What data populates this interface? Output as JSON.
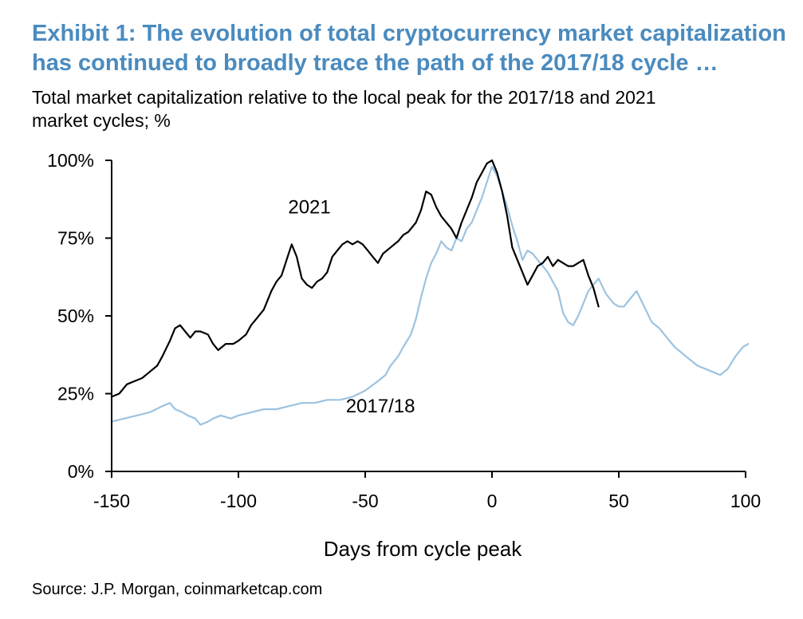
{
  "title_lines": [
    "Exhibit 1: The evolution of total cryptocurrency market capitalization",
    "has continued to broadly trace the path of the 2017/18 cycle …"
  ],
  "subtitle_lines": [
    "Total market capitalization relative to the local peak for the 2017/18 and 2021",
    "market cycles; %"
  ],
  "source": "Source: J.P.  Morgan, coinmarketcap.com",
  "colors": {
    "title": "#4a8bbf",
    "series_2021": "#000000",
    "series_2017": "#9dc3e0"
  },
  "chart_data": {
    "type": "line",
    "title": "",
    "xlabel": "Days from cycle peak",
    "ylabel": "",
    "xlim": [
      -150,
      100
    ],
    "ylim": [
      0,
      100
    ],
    "x_ticks": [
      "-150",
      "-100",
      "-50",
      "0",
      "50",
      "100"
    ],
    "y_ticks": [
      "0%",
      "25%",
      "50%",
      "75%",
      "100%"
    ],
    "grid": false,
    "series": [
      {
        "name": "2021",
        "color": "#000000",
        "points": [
          [
            -150,
            24
          ],
          [
            -147,
            25
          ],
          [
            -144,
            28
          ],
          [
            -141,
            29
          ],
          [
            -138,
            30
          ],
          [
            -135,
            32
          ],
          [
            -132,
            34
          ],
          [
            -130,
            37
          ],
          [
            -127,
            42
          ],
          [
            -125,
            46
          ],
          [
            -123,
            47
          ],
          [
            -121,
            45
          ],
          [
            -119,
            43
          ],
          [
            -117,
            45
          ],
          [
            -115,
            45
          ],
          [
            -112,
            44
          ],
          [
            -110,
            41
          ],
          [
            -108,
            39
          ],
          [
            -105,
            41
          ],
          [
            -102,
            41
          ],
          [
            -100,
            42
          ],
          [
            -97,
            44
          ],
          [
            -95,
            47
          ],
          [
            -93,
            49
          ],
          [
            -90,
            52
          ],
          [
            -87,
            58
          ],
          [
            -85,
            61
          ],
          [
            -83,
            63
          ],
          [
            -81,
            68
          ],
          [
            -79,
            73
          ],
          [
            -77,
            69
          ],
          [
            -75,
            62
          ],
          [
            -73,
            60
          ],
          [
            -71,
            59
          ],
          [
            -69,
            61
          ],
          [
            -67,
            62
          ],
          [
            -65,
            64
          ],
          [
            -63,
            69
          ],
          [
            -61,
            71
          ],
          [
            -59,
            73
          ],
          [
            -57,
            74
          ],
          [
            -55,
            73
          ],
          [
            -53,
            74
          ],
          [
            -51,
            73
          ],
          [
            -49,
            71
          ],
          [
            -47,
            69
          ],
          [
            -45,
            67
          ],
          [
            -43,
            70
          ],
          [
            -40,
            72
          ],
          [
            -37,
            74
          ],
          [
            -35,
            76
          ],
          [
            -33,
            77
          ],
          [
            -30,
            80
          ],
          [
            -28,
            84
          ],
          [
            -26,
            90
          ],
          [
            -24,
            89
          ],
          [
            -22,
            85
          ],
          [
            -20,
            82
          ],
          [
            -18,
            80
          ],
          [
            -16,
            78
          ],
          [
            -14,
            75
          ],
          [
            -12,
            80
          ],
          [
            -10,
            84
          ],
          [
            -8,
            88
          ],
          [
            -6,
            93
          ],
          [
            -4,
            96
          ],
          [
            -2,
            99
          ],
          [
            0,
            100
          ],
          [
            2,
            96
          ],
          [
            4,
            90
          ],
          [
            6,
            82
          ],
          [
            8,
            72
          ],
          [
            10,
            68
          ],
          [
            12,
            64
          ],
          [
            14,
            60
          ],
          [
            16,
            63
          ],
          [
            18,
            66
          ],
          [
            20,
            67
          ],
          [
            22,
            69
          ],
          [
            24,
            66
          ],
          [
            26,
            68
          ],
          [
            28,
            67
          ],
          [
            30,
            66
          ],
          [
            32,
            66
          ],
          [
            34,
            67
          ],
          [
            36,
            68
          ],
          [
            38,
            63
          ],
          [
            40,
            59
          ],
          [
            42,
            53
          ]
        ]
      },
      {
        "name": "2017/18",
        "color": "#9dc3e0",
        "points": [
          [
            -150,
            16
          ],
          [
            -145,
            17
          ],
          [
            -140,
            18
          ],
          [
            -135,
            19
          ],
          [
            -130,
            21
          ],
          [
            -127,
            22
          ],
          [
            -125,
            20
          ],
          [
            -122,
            19
          ],
          [
            -120,
            18
          ],
          [
            -117,
            17
          ],
          [
            -115,
            15
          ],
          [
            -112,
            16
          ],
          [
            -110,
            17
          ],
          [
            -107,
            18
          ],
          [
            -103,
            17
          ],
          [
            -100,
            18
          ],
          [
            -95,
            19
          ],
          [
            -90,
            20
          ],
          [
            -85,
            20
          ],
          [
            -80,
            21
          ],
          [
            -75,
            22
          ],
          [
            -70,
            22
          ],
          [
            -65,
            23
          ],
          [
            -60,
            23
          ],
          [
            -55,
            24
          ],
          [
            -50,
            26
          ],
          [
            -45,
            29
          ],
          [
            -42,
            31
          ],
          [
            -40,
            34
          ],
          [
            -37,
            37
          ],
          [
            -35,
            40
          ],
          [
            -32,
            44
          ],
          [
            -30,
            49
          ],
          [
            -28,
            56
          ],
          [
            -26,
            62
          ],
          [
            -24,
            67
          ],
          [
            -22,
            70
          ],
          [
            -20,
            74
          ],
          [
            -18,
            72
          ],
          [
            -16,
            71
          ],
          [
            -14,
            75
          ],
          [
            -12,
            74
          ],
          [
            -10,
            78
          ],
          [
            -8,
            80
          ],
          [
            -6,
            84
          ],
          [
            -4,
            88
          ],
          [
            -2,
            93
          ],
          [
            0,
            98
          ],
          [
            2,
            95
          ],
          [
            4,
            90
          ],
          [
            6,
            85
          ],
          [
            8,
            79
          ],
          [
            10,
            74
          ],
          [
            12,
            68
          ],
          [
            14,
            71
          ],
          [
            16,
            70
          ],
          [
            18,
            68
          ],
          [
            20,
            66
          ],
          [
            22,
            64
          ],
          [
            24,
            61
          ],
          [
            26,
            58
          ],
          [
            28,
            51
          ],
          [
            30,
            48
          ],
          [
            32,
            47
          ],
          [
            34,
            50
          ],
          [
            36,
            54
          ],
          [
            38,
            58
          ],
          [
            40,
            60
          ],
          [
            42,
            62
          ],
          [
            45,
            57
          ],
          [
            48,
            54
          ],
          [
            50,
            53
          ],
          [
            52,
            53
          ],
          [
            55,
            56
          ],
          [
            57,
            58
          ],
          [
            60,
            53
          ],
          [
            63,
            48
          ],
          [
            66,
            46
          ],
          [
            69,
            43
          ],
          [
            72,
            40
          ],
          [
            75,
            38
          ],
          [
            78,
            36
          ],
          [
            81,
            34
          ],
          [
            84,
            33
          ],
          [
            87,
            32
          ],
          [
            90,
            31
          ],
          [
            93,
            33
          ],
          [
            96,
            37
          ],
          [
            99,
            40
          ],
          [
            101,
            41
          ]
        ]
      }
    ],
    "annotations": [
      {
        "text": "2021",
        "x": -72,
        "y": 83
      },
      {
        "text": "2017/18",
        "x": -44,
        "y": 19
      }
    ]
  }
}
